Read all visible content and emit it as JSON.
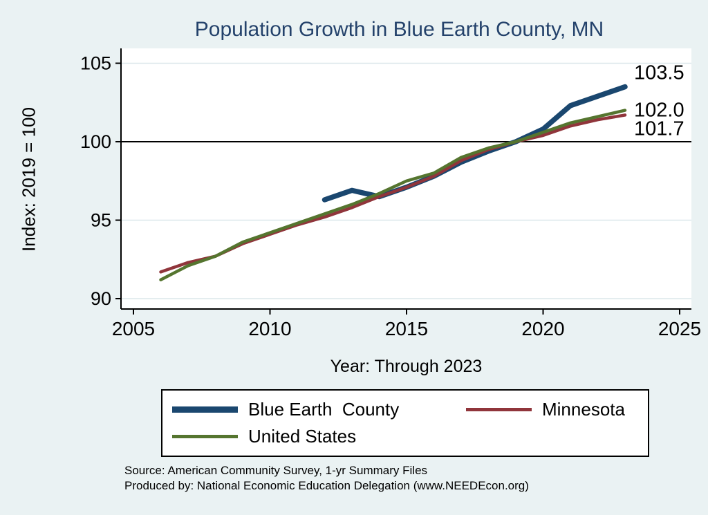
{
  "colors": {
    "background": "#eaf2f3",
    "plot_background": "#ffffff",
    "title": "#24426b",
    "grid": "#dbe7ea",
    "axis": "#000000",
    "reference_line": "#000000"
  },
  "chart_data": {
    "type": "line",
    "title": "Population Growth in Blue Earth County, MN",
    "xlabel": "Year: Through 2023",
    "ylabel": "Index: 2019 = 100",
    "xlim": [
      2005,
      2025
    ],
    "ylim": [
      89.3,
      106
    ],
    "xticks": [
      2005,
      2010,
      2015,
      2020,
      2025
    ],
    "yticks": [
      90,
      95,
      100,
      105
    ],
    "grid": "horizontal",
    "reference_line_y": 100,
    "legend_position": "bottom",
    "series": [
      {
        "name": "Blue Earth  County",
        "color": "#1a476f",
        "width": 7.5,
        "x": [
          2012,
          2013,
          2014,
          2015,
          2016,
          2017,
          2018,
          2019,
          2020,
          2021,
          2022,
          2023
        ],
        "values": [
          96.3,
          96.9,
          96.5,
          97.1,
          97.8,
          98.7,
          99.4,
          100.0,
          100.8,
          102.3,
          102.9,
          103.5
        ]
      },
      {
        "name": "Minnesota",
        "color": "#90353b",
        "width": 4.5,
        "x": [
          2006,
          2007,
          2008,
          2009,
          2010,
          2011,
          2012,
          2013,
          2014,
          2015,
          2016,
          2017,
          2018,
          2019,
          2020,
          2021,
          2022,
          2023
        ],
        "values": [
          91.7,
          92.3,
          92.7,
          93.5,
          94.1,
          94.7,
          95.2,
          95.8,
          96.5,
          97.1,
          97.8,
          98.8,
          99.5,
          100.0,
          100.4,
          101.0,
          101.4,
          101.7
        ]
      },
      {
        "name": "United States",
        "color": "#55752f",
        "width": 4.5,
        "x": [
          2006,
          2007,
          2008,
          2009,
          2010,
          2011,
          2012,
          2013,
          2014,
          2015,
          2016,
          2017,
          2018,
          2019,
          2020,
          2021,
          2022,
          2023
        ],
        "values": [
          91.2,
          92.1,
          92.7,
          93.6,
          94.2,
          94.8,
          95.4,
          96.0,
          96.7,
          97.5,
          98.0,
          99.0,
          99.6,
          100.0,
          100.6,
          101.2,
          101.6,
          102.0
        ]
      }
    ],
    "end_labels": [
      {
        "text": "103.5",
        "value": 103.5,
        "dy": -20
      },
      {
        "text": "102.0",
        "value": 102.0,
        "dy": 0
      },
      {
        "text": "101.7",
        "value": 101.7,
        "dy": 20
      }
    ]
  },
  "notes": {
    "source": "Source: American Community Survey, 1-yr Summary Files",
    "produced_by": "Produced by: National Economic Education Delegation (www.NEEDEcon.org)"
  }
}
